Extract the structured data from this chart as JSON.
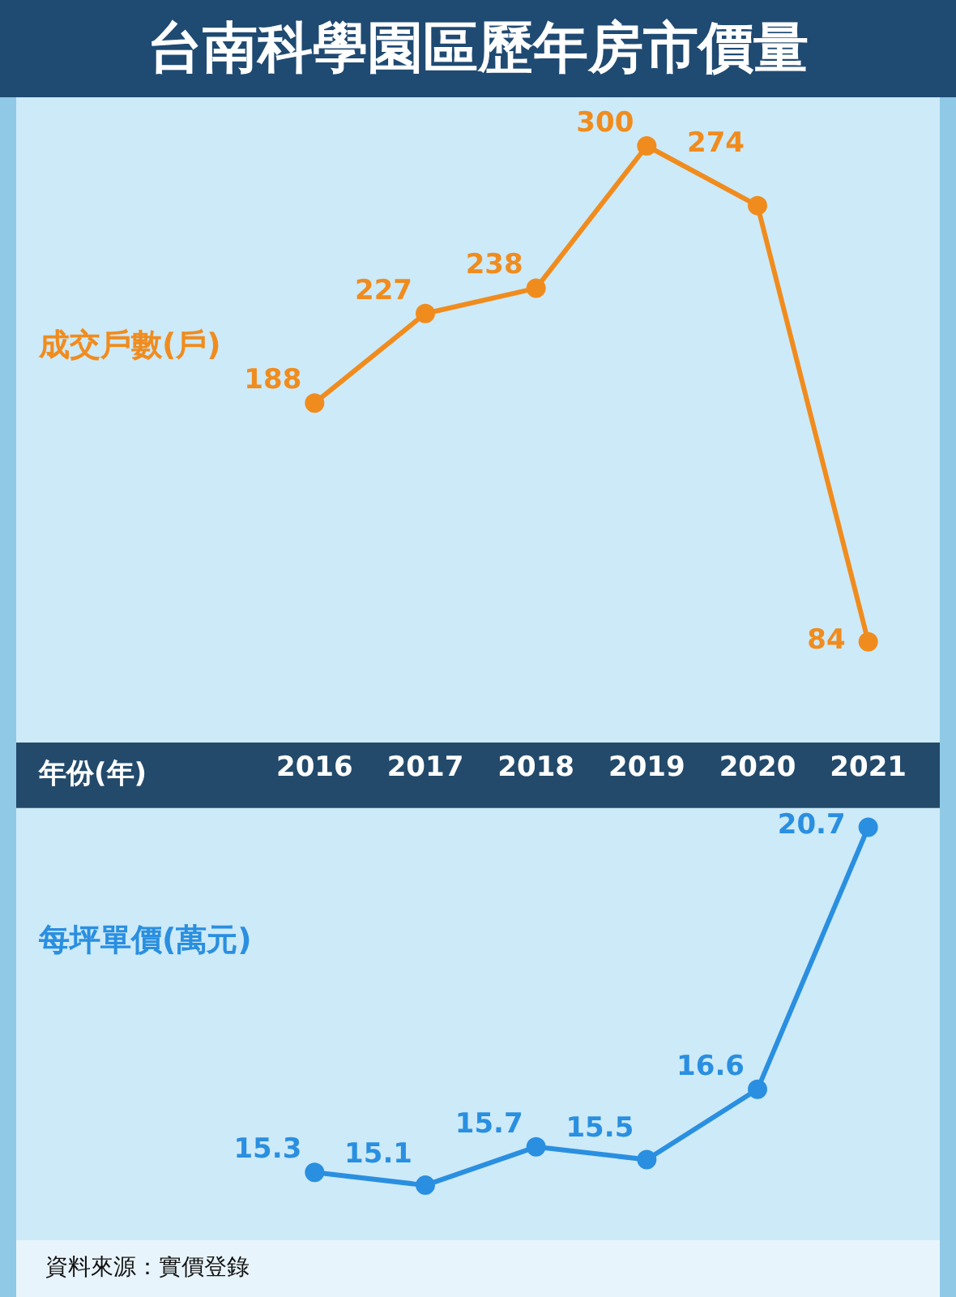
{
  "chart_data": [
    {
      "type": "line",
      "title": "台南科學園區歷年房市價量",
      "categories": [
        "2016",
        "2017",
        "2018",
        "2019",
        "2020",
        "2021"
      ],
      "tick_labels": false,
      "series": [
        {
          "name": "成交戶數(戶)",
          "color": "#f08c1e",
          "values": [
            188,
            227,
            238,
            300,
            274,
            84
          ]
        }
      ],
      "data_labels": true,
      "marker": "circle"
    },
    {
      "type": "line",
      "xlabel": "年份(年)",
      "categories": [
        "2016",
        "2017",
        "2018",
        "2019",
        "2020",
        "2021"
      ],
      "series": [
        {
          "name": "每坪單價(萬元)",
          "color": "#2a8fe0",
          "values": [
            15.3,
            15.1,
            15.7,
            15.5,
            16.6,
            20.7
          ]
        }
      ],
      "data_labels": true,
      "marker": "circle",
      "annotations": [
        "資料來源：實價登錄"
      ]
    }
  ]
}
